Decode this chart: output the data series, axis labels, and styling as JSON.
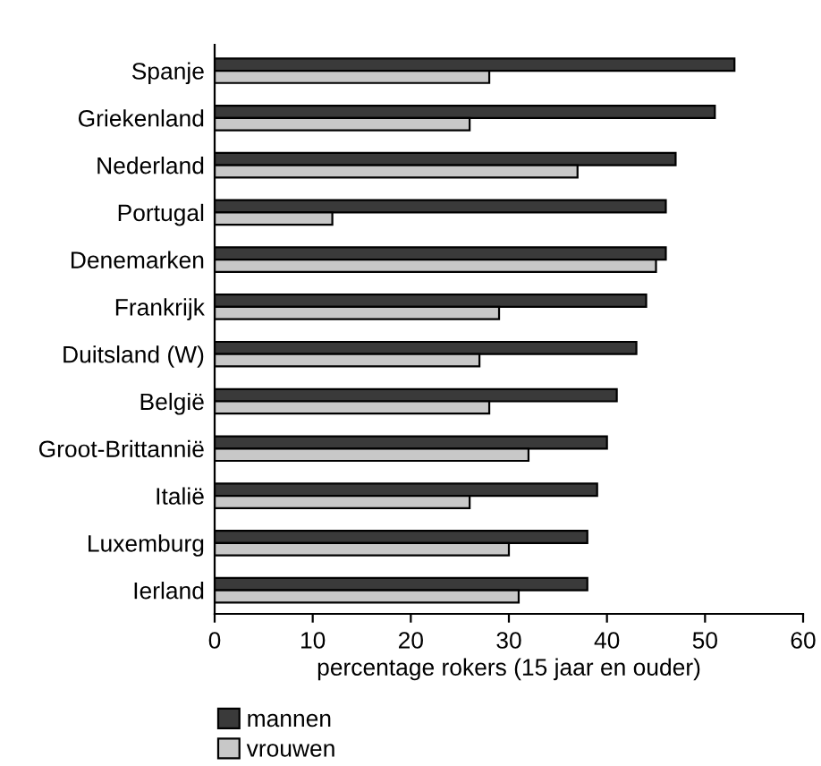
{
  "chart_data": {
    "type": "bar",
    "orientation": "horizontal",
    "xlabel": "percentage rokers (15 jaar en ouder)",
    "categories": [
      "Spanje",
      "Griekenland",
      "Nederland",
      "Portugal",
      "Denemarken",
      "Frankrijk",
      "Duitsland (W)",
      "België",
      "Groot-Brittannië",
      "Italië",
      "Luxemburg",
      "Ierland"
    ],
    "series": [
      {
        "name": "mannen",
        "color": "#3a3a3a",
        "values": [
          53,
          51,
          47,
          46,
          46,
          44,
          43,
          41,
          40,
          39,
          38,
          38
        ]
      },
      {
        "name": "vrouwen",
        "color": "#c8c8c8",
        "values": [
          28,
          26,
          37,
          12,
          45,
          29,
          27,
          28,
          32,
          26,
          30,
          31
        ]
      }
    ],
    "xlim": [
      0,
      60
    ],
    "xticks": [
      0,
      10,
      20,
      30,
      40,
      50,
      60
    ],
    "grid": false,
    "legend": "bottom left"
  }
}
